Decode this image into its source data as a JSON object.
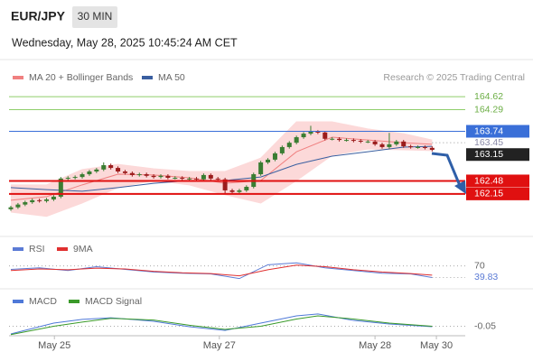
{
  "chart_data": [
    {
      "type": "candlestick",
      "title": "EUR/JPY",
      "interval": "30 MIN",
      "subtitle": "Wednesday, May 28, 2025 10:45:24 AM CET",
      "credit": "Research © 2025 Trading Central",
      "up_color": "#3a7d32",
      "down_color": "#9b1c1c",
      "xlim": [
        0,
        73
      ],
      "ylim": [
        161.07,
        165.47
      ],
      "x": [
        0,
        1,
        2,
        3,
        4,
        5,
        6,
        7,
        8,
        9,
        10,
        11,
        12,
        13,
        14,
        15,
        16,
        17,
        18,
        19,
        20,
        21,
        22,
        23,
        24,
        25,
        26,
        27,
        28,
        29,
        30,
        31,
        32,
        33,
        34,
        35,
        36,
        37,
        38,
        39,
        40,
        41,
        42,
        43,
        44,
        45,
        46,
        47,
        48,
        49,
        50,
        51,
        52,
        53,
        54,
        55,
        56,
        57,
        58,
        59
      ],
      "open": [
        161.76,
        161.81,
        161.88,
        161.94,
        161.99,
        161.97,
        162.01,
        162.08,
        162.54,
        162.56,
        162.58,
        162.65,
        162.72,
        162.77,
        162.88,
        162.81,
        162.72,
        162.68,
        162.63,
        162.65,
        162.61,
        162.58,
        162.61,
        162.56,
        162.56,
        162.54,
        162.54,
        162.52,
        162.63,
        162.54,
        162.52,
        162.24,
        162.2,
        162.24,
        162.33,
        162.65,
        162.95,
        163.02,
        163.18,
        163.34,
        163.45,
        163.59,
        163.68,
        163.73,
        163.71,
        163.55,
        163.55,
        163.52,
        163.52,
        163.5,
        163.48,
        163.48,
        163.41,
        163.34,
        163.41,
        163.48,
        163.36,
        163.34,
        163.34,
        163.32
      ],
      "high": [
        161.85,
        161.92,
        161.98,
        162.03,
        162.03,
        162.05,
        162.12,
        162.58,
        162.6,
        162.62,
        162.69,
        162.76,
        162.81,
        162.95,
        162.92,
        162.85,
        162.76,
        162.72,
        162.69,
        162.69,
        162.65,
        162.65,
        162.65,
        162.6,
        162.6,
        162.58,
        162.58,
        162.67,
        162.67,
        162.58,
        162.56,
        162.28,
        162.28,
        162.37,
        162.69,
        162.99,
        163.06,
        163.22,
        163.38,
        163.49,
        163.63,
        163.72,
        163.88,
        163.77,
        163.75,
        163.59,
        163.59,
        163.56,
        163.56,
        163.54,
        163.52,
        163.52,
        163.45,
        163.7,
        163.52,
        163.52,
        163.4,
        163.38,
        163.38,
        163.36
      ],
      "low": [
        161.72,
        161.77,
        161.84,
        161.9,
        161.93,
        161.93,
        161.97,
        162.04,
        162.5,
        162.52,
        162.54,
        162.61,
        162.68,
        162.73,
        162.77,
        162.68,
        162.64,
        162.59,
        162.59,
        162.57,
        162.54,
        162.54,
        162.52,
        162.52,
        162.5,
        162.5,
        162.48,
        162.48,
        162.5,
        162.48,
        162.17,
        162.16,
        162.16,
        162.2,
        162.29,
        162.61,
        162.91,
        162.98,
        163.14,
        163.3,
        163.41,
        163.55,
        163.64,
        163.67,
        163.51,
        163.51,
        163.48,
        163.48,
        163.46,
        163.44,
        163.44,
        163.37,
        163.3,
        163.3,
        163.37,
        163.32,
        163.3,
        163.3,
        163.28,
        163.23
      ],
      "close": [
        161.81,
        161.88,
        161.94,
        161.99,
        161.97,
        162.01,
        162.08,
        162.54,
        162.56,
        162.58,
        162.65,
        162.72,
        162.77,
        162.88,
        162.81,
        162.72,
        162.68,
        162.63,
        162.65,
        162.61,
        162.58,
        162.61,
        162.56,
        162.56,
        162.54,
        162.54,
        162.52,
        162.63,
        162.54,
        162.52,
        162.24,
        162.2,
        162.24,
        162.33,
        162.65,
        162.95,
        163.02,
        163.18,
        163.34,
        163.45,
        163.59,
        163.68,
        163.73,
        163.71,
        163.55,
        163.55,
        163.52,
        163.52,
        163.5,
        163.48,
        163.48,
        163.41,
        163.34,
        163.41,
        163.48,
        163.36,
        163.34,
        163.34,
        163.32,
        163.27
      ],
      "series": [
        {
          "name": "MA 20 + Bollinger Bands",
          "color": "#f08080",
          "band_color": "#fcd9d9",
          "x": [
            0,
            5,
            10,
            15,
            20,
            25,
            30,
            35,
            40,
            45,
            50,
            55,
            59
          ],
          "values": [
            161.99,
            162.08,
            162.38,
            162.65,
            162.63,
            162.56,
            162.42,
            162.49,
            163.22,
            163.59,
            163.52,
            163.45,
            163.41
          ],
          "upper": [
            162.38,
            162.38,
            162.77,
            162.9,
            162.79,
            162.72,
            162.72,
            163.06,
            163.98,
            163.98,
            163.8,
            163.68,
            163.52
          ],
          "lower": [
            161.69,
            161.58,
            161.92,
            162.31,
            162.49,
            162.38,
            162.13,
            161.92,
            162.49,
            163.13,
            163.29,
            163.27,
            163.25
          ]
        },
        {
          "name": "MA 50",
          "color": "#3a5fa0",
          "x": [
            0,
            5,
            10,
            15,
            20,
            25,
            30,
            35,
            40,
            45,
            50,
            55,
            59
          ],
          "values": [
            162.31,
            162.26,
            162.22,
            162.31,
            162.42,
            162.49,
            162.49,
            162.58,
            162.9,
            163.11,
            163.22,
            163.34,
            163.36
          ]
        }
      ],
      "levels": [
        {
          "value": 164.62,
          "kind": "line",
          "color": "#8fce6a"
        },
        {
          "value": 164.29,
          "kind": "line",
          "color": "#8fce6a"
        },
        {
          "value": 163.74,
          "kind": "box",
          "color": "#3a6fd8"
        },
        {
          "value": 163.45,
          "kind": "dotted",
          "color": "#8a8aa8"
        },
        {
          "value": 163.15,
          "kind": "marker",
          "color": "#222222"
        },
        {
          "value": 162.48,
          "kind": "box",
          "color": "#e01010"
        },
        {
          "value": 162.15,
          "kind": "box",
          "color": "#e01010"
        }
      ]
    },
    {
      "type": "line",
      "xlim": [
        0,
        73
      ],
      "ylim": [
        15,
        95
      ],
      "yticks": [
        70
      ],
      "series": [
        {
          "name": "RSI",
          "color": "#5b7bd5",
          "x": [
            0,
            4,
            8,
            12,
            16,
            20,
            24,
            28,
            32,
            36,
            40,
            44,
            48,
            52,
            56,
            59
          ],
          "values": [
            61,
            65,
            58,
            68,
            61,
            54,
            51,
            49,
            37,
            73,
            78,
            65,
            58,
            51,
            49,
            39.83
          ]
        },
        {
          "name": "9MA",
          "color": "#e03030",
          "x": [
            0,
            4,
            8,
            12,
            16,
            20,
            24,
            28,
            32,
            36,
            40,
            44,
            48,
            52,
            56,
            59
          ],
          "values": [
            58,
            62,
            60,
            64,
            62,
            56,
            52,
            50,
            44,
            60,
            72,
            68,
            60,
            54,
            50,
            46
          ]
        }
      ]
    },
    {
      "type": "line",
      "xlim": [
        0,
        73
      ],
      "ylim": [
        -0.1,
        0.1
      ],
      "yticks": [
        -0.05
      ],
      "xticks": [
        {
          "value": 6.1,
          "label": "May 25"
        },
        {
          "value": 29.2,
          "label": "May 27"
        },
        {
          "value": 51,
          "label": "May 28"
        },
        {
          "value": 59.6,
          "label": "May 30"
        }
      ],
      "series": [
        {
          "name": "MACD",
          "color": "#4f79d8",
          "x": [
            0,
            6,
            10,
            14,
            20,
            25,
            30,
            35,
            40,
            43,
            48,
            53,
            59
          ],
          "values": [
            -0.087,
            -0.035,
            -0.017,
            -0.009,
            -0.026,
            -0.052,
            -0.07,
            -0.035,
            0,
            0.009,
            -0.022,
            -0.039,
            -0.052
          ]
        },
        {
          "name": "MACD Signal",
          "color": "#3a9a2a",
          "x": [
            0,
            6,
            10,
            14,
            20,
            25,
            30,
            35,
            40,
            43,
            48,
            53,
            59
          ],
          "values": [
            -0.09,
            -0.05,
            -0.03,
            -0.012,
            -0.02,
            -0.045,
            -0.065,
            -0.05,
            -0.015,
            0,
            -0.015,
            -0.035,
            -0.05
          ]
        }
      ]
    }
  ]
}
